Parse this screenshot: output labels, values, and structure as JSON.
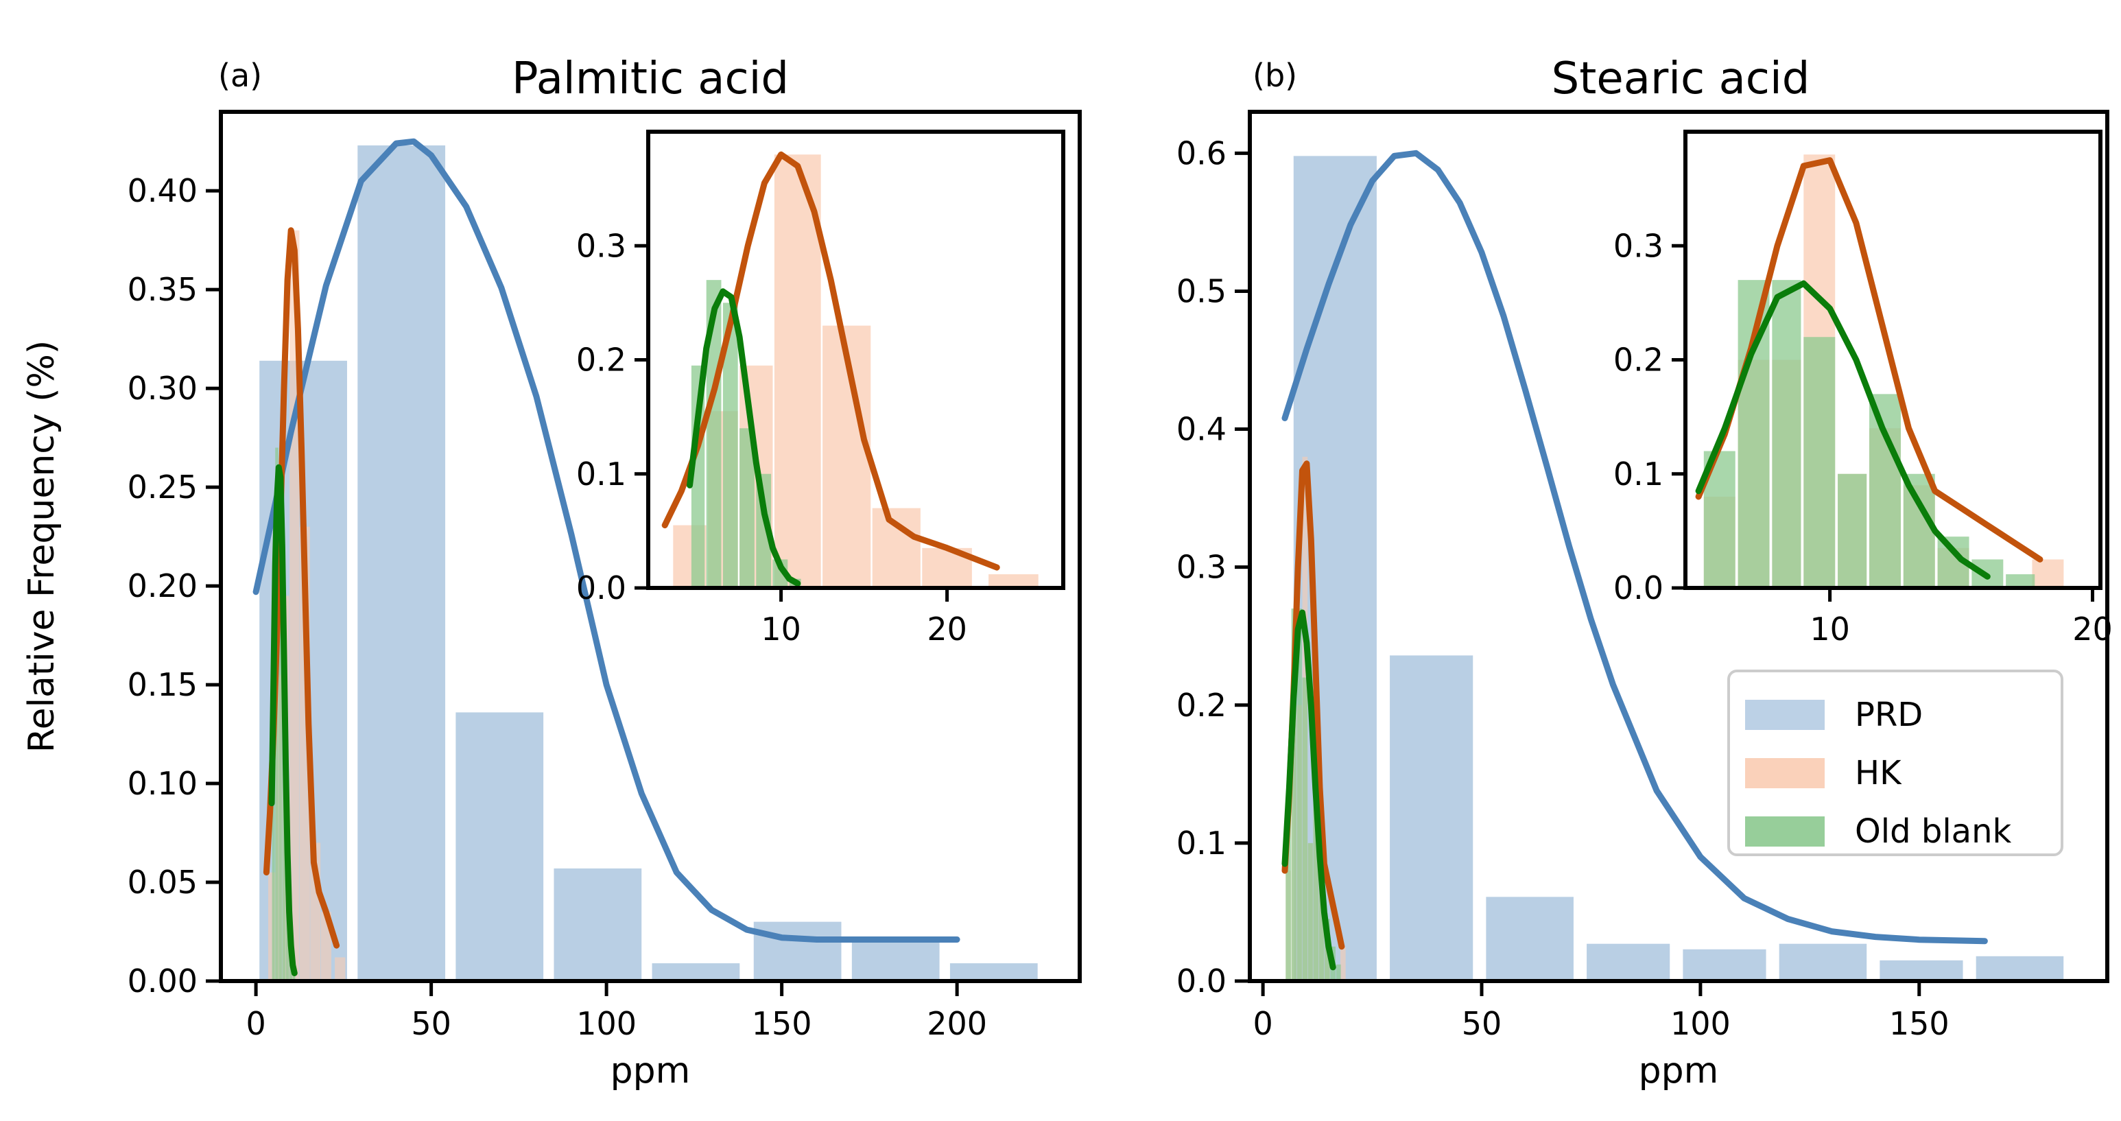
{
  "colors": {
    "prd_bar": "#b5cce3",
    "hk_bar": "#f9ccb3",
    "old_bar": "#8cc98f",
    "prd_line": "#4a81b8",
    "hk_line": "#c2530c",
    "old_line": "#0a7d0a",
    "axis": "#000000"
  },
  "legend": {
    "items": [
      {
        "label": "PRD",
        "color_key": "prd_bar"
      },
      {
        "label": "HK",
        "color_key": "hk_bar"
      },
      {
        "label": "Old blank",
        "color_key": "old_bar"
      }
    ],
    "placement": "lower-right of panel (b)"
  },
  "chart_data": [
    {
      "id": "a",
      "type": "bar",
      "panel_label": "(a)",
      "title": "Palmitic acid",
      "xlabel": "ppm",
      "ylabel": "Relative Frequency (%)",
      "xlim": [
        -10,
        235
      ],
      "ylim": [
        0,
        0.44
      ],
      "xticks": [
        0,
        50,
        100,
        150,
        200
      ],
      "xtick_labels": [
        "0",
        "50",
        "100",
        "150",
        "200"
      ],
      "yticks": [
        0,
        0.05,
        0.1,
        0.15,
        0.2,
        0.25,
        0.3,
        0.35,
        0.4
      ],
      "ytick_labels": [
        "0.00",
        "0.05",
        "0.10",
        "0.15",
        "0.20",
        "0.25",
        "0.30",
        "0.35",
        "0.40"
      ],
      "series": [
        {
          "name": "PRD",
          "kind": "bars",
          "color_key": "prd_bar",
          "bars": [
            [
              1,
              26,
              0.314
            ],
            [
              29,
              54,
              0.423
            ],
            [
              57,
              82,
              0.136
            ],
            [
              85,
              110,
              0.057
            ],
            [
              113,
              138,
              0.009
            ],
            [
              142,
              167,
              0.03
            ],
            [
              170,
              195,
              0.021
            ],
            [
              198,
              223,
              0.009
            ]
          ]
        },
        {
          "name": "HK",
          "kind": "bars",
          "color_key": "hk_bar",
          "bars": [
            [
              3.5,
              5.5,
              0.055
            ],
            [
              5.6,
              7.4,
              0.155
            ],
            [
              7.5,
              9.5,
              0.195
            ],
            [
              9.6,
              12.4,
              0.38
            ],
            [
              12.5,
              15.4,
              0.23
            ],
            [
              15.5,
              18.4,
              0.07
            ],
            [
              18.5,
              21.5,
              0.035
            ],
            [
              22.5,
              25.5,
              0.012
            ]
          ]
        },
        {
          "name": "Old blank",
          "kind": "bars",
          "color_key": "old_bar",
          "bars": [
            [
              4.6,
              5.4,
              0.195
            ],
            [
              5.5,
              6.4,
              0.27
            ],
            [
              6.5,
              7.4,
              0.25
            ],
            [
              7.5,
              8.4,
              0.14
            ],
            [
              8.5,
              9.4,
              0.1
            ],
            [
              9.5,
              10.4,
              0.025
            ],
            [
              10.5,
              11.2,
              0.008
            ]
          ]
        },
        {
          "name": "PRD fit",
          "kind": "line",
          "color_key": "prd_line",
          "x": [
            0,
            10,
            20,
            30,
            40,
            45,
            50,
            60,
            70,
            80,
            90,
            100,
            110,
            120,
            130,
            140,
            150,
            160,
            170,
            180,
            190,
            200
          ],
          "y": [
            0.197,
            0.278,
            0.352,
            0.405,
            0.424,
            0.425,
            0.418,
            0.392,
            0.351,
            0.296,
            0.226,
            0.15,
            0.095,
            0.055,
            0.036,
            0.026,
            0.022,
            0.021,
            0.021,
            0.021,
            0.021,
            0.021
          ]
        },
        {
          "name": "HK fit",
          "kind": "line",
          "color_key": "hk_line",
          "x": [
            3,
            4,
            5,
            6,
            7,
            8,
            9,
            10,
            11,
            12,
            13,
            14,
            15,
            16.5,
            18,
            20,
            23
          ],
          "y": [
            0.055,
            0.085,
            0.125,
            0.175,
            0.235,
            0.3,
            0.355,
            0.38,
            0.37,
            0.33,
            0.27,
            0.2,
            0.13,
            0.06,
            0.045,
            0.035,
            0.018
          ]
        },
        {
          "name": "Old blank fit",
          "kind": "line",
          "color_key": "old_line",
          "x": [
            4.5,
            5,
            5.5,
            6,
            6.5,
            7,
            7.5,
            8,
            8.5,
            9,
            9.5,
            10,
            10.5,
            11
          ],
          "y": [
            0.09,
            0.15,
            0.21,
            0.245,
            0.26,
            0.255,
            0.22,
            0.165,
            0.11,
            0.065,
            0.035,
            0.018,
            0.008,
            0.004
          ]
        }
      ],
      "inset": {
        "xlim": [
          2,
          27
        ],
        "ylim": [
          0,
          0.4
        ],
        "xticks": [
          10,
          20
        ],
        "xtick_labels": [
          "10",
          "20"
        ],
        "yticks": [
          0,
          0.1,
          0.2,
          0.3
        ],
        "ytick_labels": [
          "0.0",
          "0.1",
          "0.2",
          "0.3"
        ]
      }
    },
    {
      "id": "b",
      "type": "bar",
      "panel_label": "(b)",
      "title": "Stearic acid",
      "xlabel": "ppm",
      "ylabel": "",
      "xlim": [
        -3,
        193
      ],
      "ylim": [
        0,
        0.63
      ],
      "xticks": [
        0,
        50,
        100,
        150
      ],
      "xtick_labels": [
        "0",
        "50",
        "100",
        "150"
      ],
      "yticks": [
        0,
        0.1,
        0.2,
        0.3,
        0.4,
        0.5,
        0.6
      ],
      "ytick_labels": [
        "0.0",
        "0.1",
        "0.2",
        "0.3",
        "0.4",
        "0.5",
        "0.6"
      ],
      "series": [
        {
          "name": "PRD",
          "kind": "bars",
          "color_key": "prd_bar",
          "bars": [
            [
              7,
              26,
              0.598
            ],
            [
              29,
              48,
              0.236
            ],
            [
              51,
              71,
              0.061
            ],
            [
              74,
              93,
              0.027
            ],
            [
              96,
              115,
              0.023
            ],
            [
              118,
              138,
              0.027
            ],
            [
              141,
              160,
              0.015
            ],
            [
              163,
              183,
              0.018
            ]
          ]
        },
        {
          "name": "HK",
          "kind": "bars",
          "color_key": "hk_bar",
          "bars": [
            [
              5.2,
              6.4,
              0.08
            ],
            [
              6.5,
              7.7,
              0.2
            ],
            [
              7.8,
              8.9,
              0.2
            ],
            [
              9.0,
              10.2,
              0.38
            ],
            [
              10.3,
              11.4,
              0.1
            ],
            [
              11.5,
              12.7,
              0.14
            ],
            [
              12.8,
              14.0,
              0.09
            ],
            [
              14.1,
              15.3,
              0.035
            ],
            [
              17.7,
              18.9,
              0.025
            ]
          ]
        },
        {
          "name": "Old blank",
          "kind": "bars",
          "color_key": "old_bar",
          "bars": [
            [
              5.2,
              6.4,
              0.12
            ],
            [
              6.5,
              7.7,
              0.27
            ],
            [
              7.8,
              8.9,
              0.27
            ],
            [
              9.0,
              10.2,
              0.22
            ],
            [
              10.3,
              11.4,
              0.1
            ],
            [
              11.5,
              12.7,
              0.17
            ],
            [
              12.8,
              14.0,
              0.1
            ],
            [
              14.1,
              15.3,
              0.045
            ],
            [
              15.4,
              16.6,
              0.025
            ],
            [
              16.7,
              17.8,
              0.012
            ]
          ]
        },
        {
          "name": "PRD fit",
          "kind": "line",
          "color_key": "prd_line",
          "x": [
            5,
            10,
            15,
            20,
            25,
            30,
            35,
            40,
            45,
            50,
            55,
            60,
            65,
            70,
            75,
            80,
            90,
            100,
            110,
            120,
            130,
            140,
            150,
            165
          ],
          "y": [
            0.408,
            0.458,
            0.505,
            0.548,
            0.58,
            0.598,
            0.6,
            0.588,
            0.564,
            0.528,
            0.482,
            0.428,
            0.372,
            0.315,
            0.262,
            0.215,
            0.138,
            0.09,
            0.06,
            0.045,
            0.036,
            0.032,
            0.03,
            0.029
          ]
        },
        {
          "name": "HK fit",
          "kind": "line",
          "color_key": "hk_line",
          "x": [
            5,
            6,
            7,
            8,
            9,
            10,
            11,
            12,
            13,
            14,
            15,
            16,
            17,
            18
          ],
          "y": [
            0.08,
            0.135,
            0.21,
            0.3,
            0.37,
            0.375,
            0.32,
            0.23,
            0.14,
            0.085,
            0.07,
            0.055,
            0.04,
            0.025
          ]
        },
        {
          "name": "Old blank fit",
          "kind": "line",
          "color_key": "old_line",
          "x": [
            5,
            6,
            7,
            8,
            9,
            10,
            11,
            12,
            13,
            14,
            15,
            16
          ],
          "y": [
            0.085,
            0.14,
            0.205,
            0.255,
            0.267,
            0.245,
            0.2,
            0.14,
            0.09,
            0.05,
            0.025,
            0.01
          ]
        }
      ],
      "inset": {
        "xlim": [
          4.5,
          20.3
        ],
        "ylim": [
          0,
          0.4
        ],
        "xticks": [
          10,
          20
        ],
        "xtick_labels": [
          "10",
          "20"
        ],
        "yticks": [
          0,
          0.1,
          0.2,
          0.3
        ],
        "ytick_labels": [
          "0.0",
          "0.1",
          "0.2",
          "0.3"
        ]
      }
    }
  ]
}
